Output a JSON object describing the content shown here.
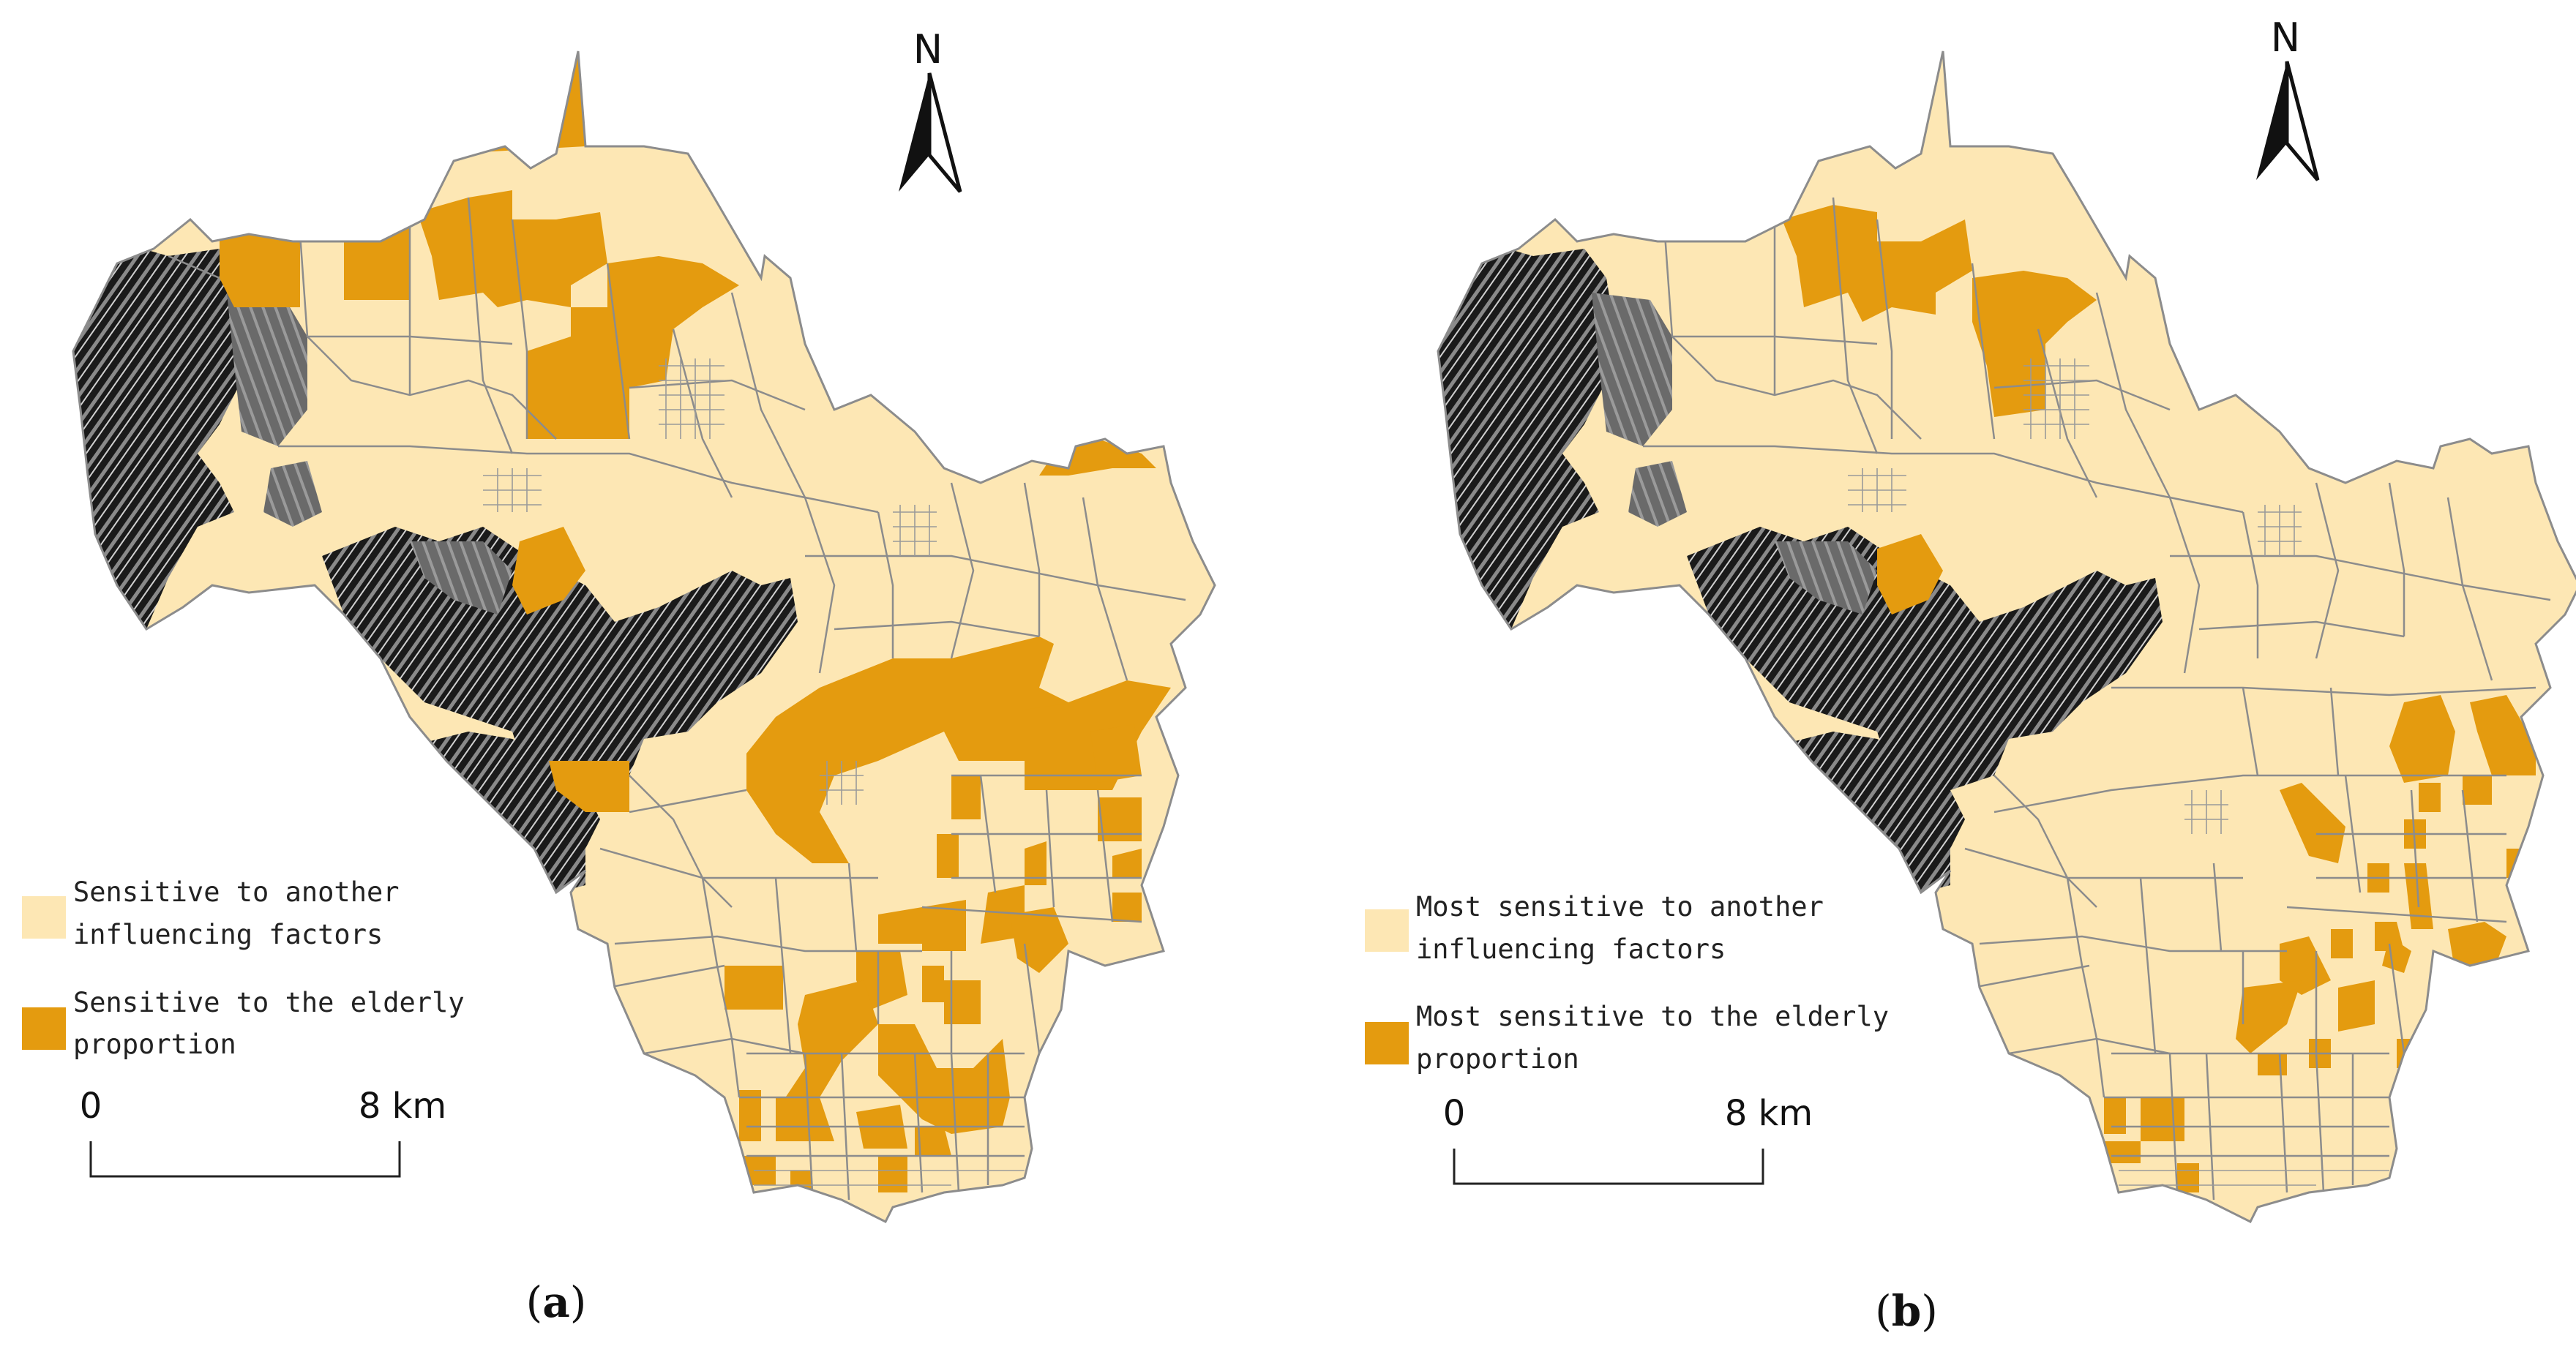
{
  "colors": {
    "background": "#ffffff",
    "other_factors": "#fde7b4",
    "elderly": "#e49b0f",
    "boundary": "#8c8c8c",
    "mountain_dark": "#141414",
    "mountain_mid": "#6e6e6e",
    "text": "#111111"
  },
  "panels": [
    {
      "caption_label": "a",
      "north_label": "N",
      "legend": [
        {
          "lines": [
            "Sensitive  to another",
            "influencing factors"
          ],
          "color_key": "other_factors"
        },
        {
          "lines": [
            "Sensitive to the elderly",
            "proportion"
          ],
          "color_key": "elderly"
        }
      ],
      "scale": {
        "start_label": "0",
        "end_label": "8 km"
      }
    },
    {
      "caption_label": "b",
      "north_label": "N",
      "legend": [
        {
          "lines": [
            "Most sensitive  to another",
            "influencing factors"
          ],
          "color_key": "other_factors"
        },
        {
          "lines": [
            "Most sensitive to the elderly",
            "proportion"
          ],
          "color_key": "elderly"
        }
      ],
      "scale": {
        "start_label": "0",
        "end_label": "8 km"
      }
    }
  ],
  "icons": [
    "north-arrow-icon"
  ]
}
